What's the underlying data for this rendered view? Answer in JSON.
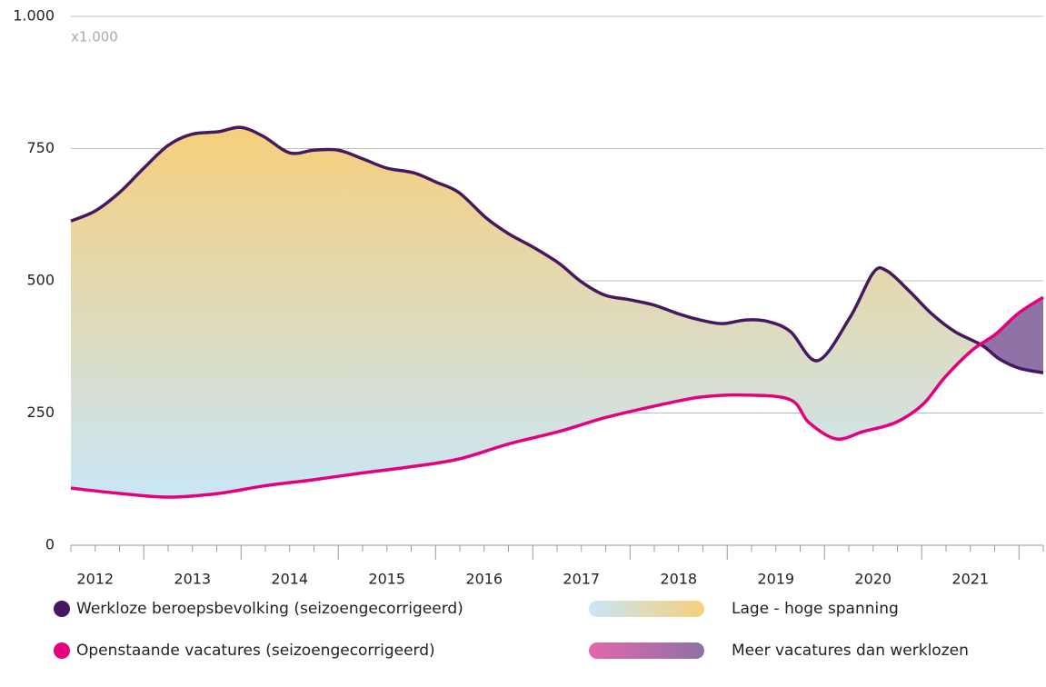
{
  "chart_data": {
    "type": "line",
    "annotation": "x1.000",
    "ylim": [
      0,
      1000
    ],
    "yticks": [
      0,
      250,
      500,
      750,
      {
        "value": 1000,
        "label": "1.000"
      }
    ],
    "grid": true,
    "xlim": [
      2012.25,
      2022.25
    ],
    "xticks": [
      {
        "value": 2012,
        "label": "2012"
      },
      {
        "value": 2013,
        "label": "2013"
      },
      {
        "value": 2014,
        "label": "2014"
      },
      {
        "value": 2015,
        "label": "2015"
      },
      {
        "value": 2016,
        "label": "2016"
      },
      {
        "value": 2017,
        "label": "2017"
      },
      {
        "value": 2018,
        "label": "2018"
      },
      {
        "value": 2019,
        "label": "2019"
      },
      {
        "value": 2020,
        "label": "2020"
      },
      {
        "value": 2021,
        "label": "2021"
      }
    ],
    "xtick_marks": [
      2013,
      2014,
      2015,
      2016,
      2017,
      2018,
      2019,
      2020,
      2021,
      2022
    ],
    "xminor_ticks": [
      2012.25,
      2012.5,
      2012.75,
      2013.25,
      2013.5,
      2013.75,
      2014.25,
      2014.5,
      2014.75,
      2015.25,
      2015.5,
      2015.75,
      2016.25,
      2016.5,
      2016.75,
      2017.25,
      2017.5,
      2017.75,
      2018.25,
      2018.5,
      2018.75,
      2019.25,
      2019.5,
      2019.75,
      2020.25,
      2020.5,
      2020.75,
      2021.25,
      2021.5,
      2021.75,
      2022.25
    ],
    "series": [
      {
        "name": "Werkloze beroepsbevolking (seizoengecorrigeerd)",
        "color": "#45185f",
        "x": [
          2012.25,
          2012.5,
          2012.75,
          2013.0,
          2013.25,
          2013.49,
          2013.77,
          2014.0,
          2014.23,
          2014.5,
          2014.75,
          2015.0,
          2015.26,
          2015.5,
          2015.78,
          2016.0,
          2016.24,
          2016.52,
          2016.76,
          2017.0,
          2017.27,
          2017.5,
          2017.74,
          2018.0,
          2018.25,
          2018.49,
          2018.72,
          2018.95,
          2019.19,
          2019.42,
          2019.65,
          2019.93,
          2020.26,
          2020.5,
          2020.64,
          2020.87,
          2021.1,
          2021.34,
          2021.62,
          2021.8,
          2022.0,
          2022.25
        ],
        "values": [
          613,
          632,
          667,
          713,
          756,
          777,
          782,
          790,
          773,
          742,
          747,
          747,
          730,
          713,
          704,
          687,
          667,
          619,
          588,
          564,
          533,
          498,
          473,
          464,
          454,
          438,
          426,
          419,
          426,
          423,
          404,
          349,
          430,
          515,
          519,
          481,
          438,
          404,
          378,
          352,
          335,
          326
        ]
      },
      {
        "name": "Openstaande vacatures (seizoengecorrigeerd)",
        "color": "#e5007d",
        "x": [
          2012.25,
          2012.75,
          2013.25,
          2013.77,
          2014.23,
          2014.75,
          2015.26,
          2015.73,
          2016.24,
          2016.76,
          2017.27,
          2017.74,
          2018.25,
          2018.72,
          2019.19,
          2019.65,
          2019.84,
          2020.12,
          2020.4,
          2020.73,
          2021.01,
          2021.24,
          2021.52,
          2021.76,
          2021.99,
          2022.25
        ],
        "values": [
          108,
          98,
          91,
          98,
          112,
          124,
          137,
          148,
          163,
          192,
          215,
          241,
          263,
          280,
          284,
          275,
          232,
          201,
          215,
          232,
          266,
          318,
          369,
          399,
          438,
          469
        ]
      }
    ],
    "fill_legend": [
      {
        "name": "Lage - hoge spanning",
        "colors": [
          "#c9e6f6",
          "#f6cf7c"
        ]
      },
      {
        "name": "Meer vacatures dan werklozen",
        "colors": [
          "#e367ab",
          "#8e72a6"
        ]
      }
    ]
  }
}
